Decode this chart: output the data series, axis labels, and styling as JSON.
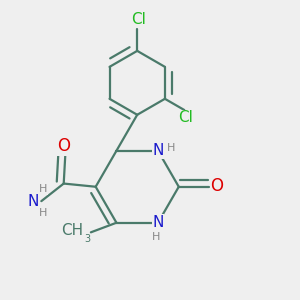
{
  "bg_color": "#efefef",
  "bond_color": "#4a7a6a",
  "bond_width": 1.6,
  "dbo": 0.022,
  "atom_colors": {
    "C": "#4a7a6a",
    "N": "#1a1acc",
    "O": "#dd0000",
    "Cl": "#22bb22",
    "H": "#888888"
  },
  "fs_main": 11,
  "fs_sub": 8,
  "figsize": [
    3.0,
    3.0
  ],
  "dpi": 100
}
